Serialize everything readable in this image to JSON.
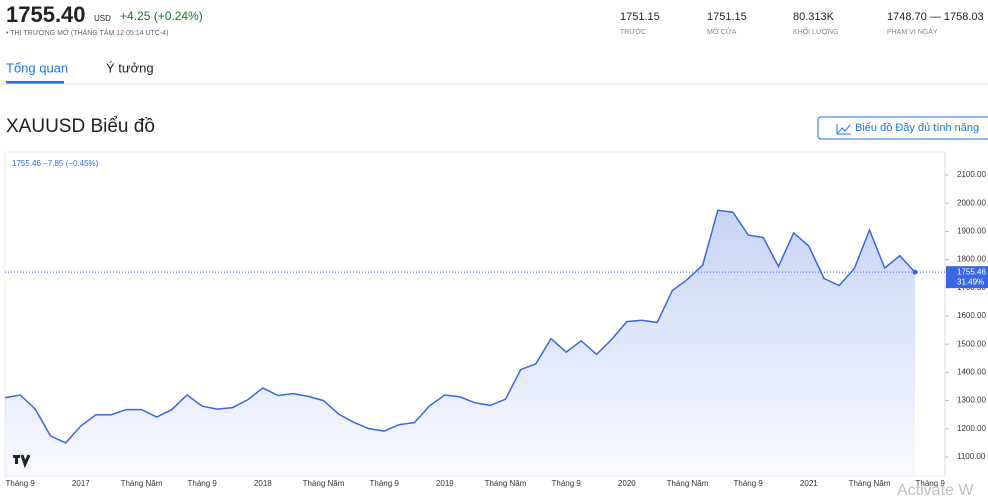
{
  "header": {
    "price": "1755.40",
    "currency": "USD",
    "change": "+4.25 (+0.24%)",
    "status": "• THỊ TRƯỜNG MỞ (THÁNG TÁM 12 05:14 UTC-4)",
    "stats": [
      {
        "value": "1751.15",
        "label": "TRƯỚC"
      },
      {
        "value": "1751.15",
        "label": "MỞ CỬA"
      },
      {
        "value": "80.313K",
        "label": "KHỐI LƯỢNG"
      },
      {
        "value": "1748.70 — 1758.03",
        "label": "PHẠM VI NGÀY"
      }
    ]
  },
  "tabs": [
    "Tổng quan",
    "Ý tưởng"
  ],
  "section_title": "XAUUSD Biểu đồ",
  "button": "Biểu đồ Đầy đủ tính năng",
  "watermark": "Activate W",
  "chart_data": {
    "type": "line",
    "legend_text": "1755.46 −7.85 (−0.45%)",
    "change_label": "31.49%",
    "color": "#3a66e0",
    "categories": [
      null,
      "Tháng 9",
      null,
      null,
      null,
      "2017",
      null,
      null,
      null,
      "Tháng Năm",
      null,
      null,
      null,
      "Tháng 9",
      null,
      null,
      null,
      "2018",
      null,
      null,
      null,
      "Tháng Năm",
      null,
      null,
      null,
      "Tháng 9",
      null,
      null,
      null,
      "2019",
      null,
      null,
      null,
      "Tháng Năm",
      null,
      null,
      null,
      "Tháng 9",
      null,
      null,
      null,
      "2020",
      null,
      null,
      null,
      "Tháng Năm",
      null,
      null,
      null,
      "Tháng 9",
      null,
      null,
      null,
      "2021",
      null,
      null,
      null,
      "Tháng Năm",
      null,
      null,
      null,
      "Tháng 9"
    ],
    "values": [
      1310,
      1320,
      1270,
      1175,
      1150,
      1210,
      1250,
      1250,
      1268,
      1268,
      1242,
      1268,
      1320,
      1280,
      1270,
      1275,
      1303,
      1345,
      1318,
      1325,
      1315,
      1300,
      1252,
      1223,
      1200,
      1192,
      1215,
      1222,
      1282,
      1320,
      1313,
      1292,
      1283,
      1305,
      1410,
      1430,
      1520,
      1472,
      1512,
      1464,
      1517,
      1580,
      1585,
      1577,
      1690,
      1730,
      1780,
      1975,
      1968,
      1887,
      1878,
      1776,
      1895,
      1848,
      1733,
      1708,
      1768,
      1905,
      1770,
      1814,
      1755.46,
      null
    ],
    "ylim": [
      1100,
      2100
    ],
    "yticks": [
      {
        "value": 1100,
        "label": "1100.00"
      },
      {
        "value": 1200,
        "label": "1200.00"
      },
      {
        "value": 1300,
        "label": "1300.00"
      },
      {
        "value": 1400,
        "label": "1400.00"
      },
      {
        "value": 1500,
        "label": "1500.00"
      },
      {
        "value": 1600,
        "label": "1600.00"
      },
      {
        "value": 1700,
        "label": "1700.00"
      },
      {
        "value": 1800,
        "label": "1800.00"
      },
      {
        "value": 1900,
        "label": "1900.00"
      },
      {
        "value": 2000,
        "label": "2000.00"
      },
      {
        "value": 2100,
        "label": "2100.00"
      }
    ]
  }
}
